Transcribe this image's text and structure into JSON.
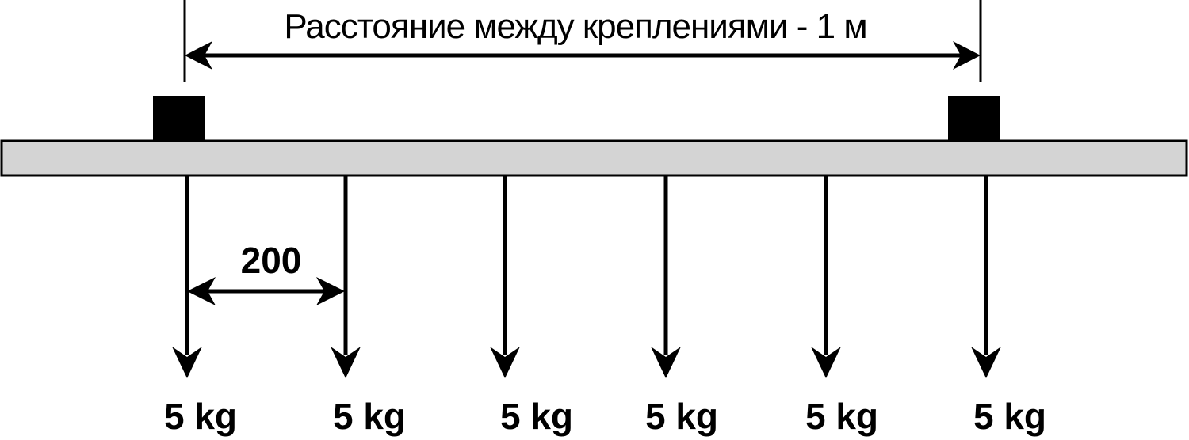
{
  "span_label": "Расстояние между креплениями - 1 м",
  "spacing_label": "200",
  "loads": [
    {
      "label": "5 kg"
    },
    {
      "label": "5 kg"
    },
    {
      "label": "5 kg"
    },
    {
      "label": "5 kg"
    },
    {
      "label": "5 kg"
    },
    {
      "label": "5 kg"
    }
  ],
  "colors": {
    "beam_fill": "#d4d4d4",
    "line": "#000000",
    "support": "#000000"
  }
}
